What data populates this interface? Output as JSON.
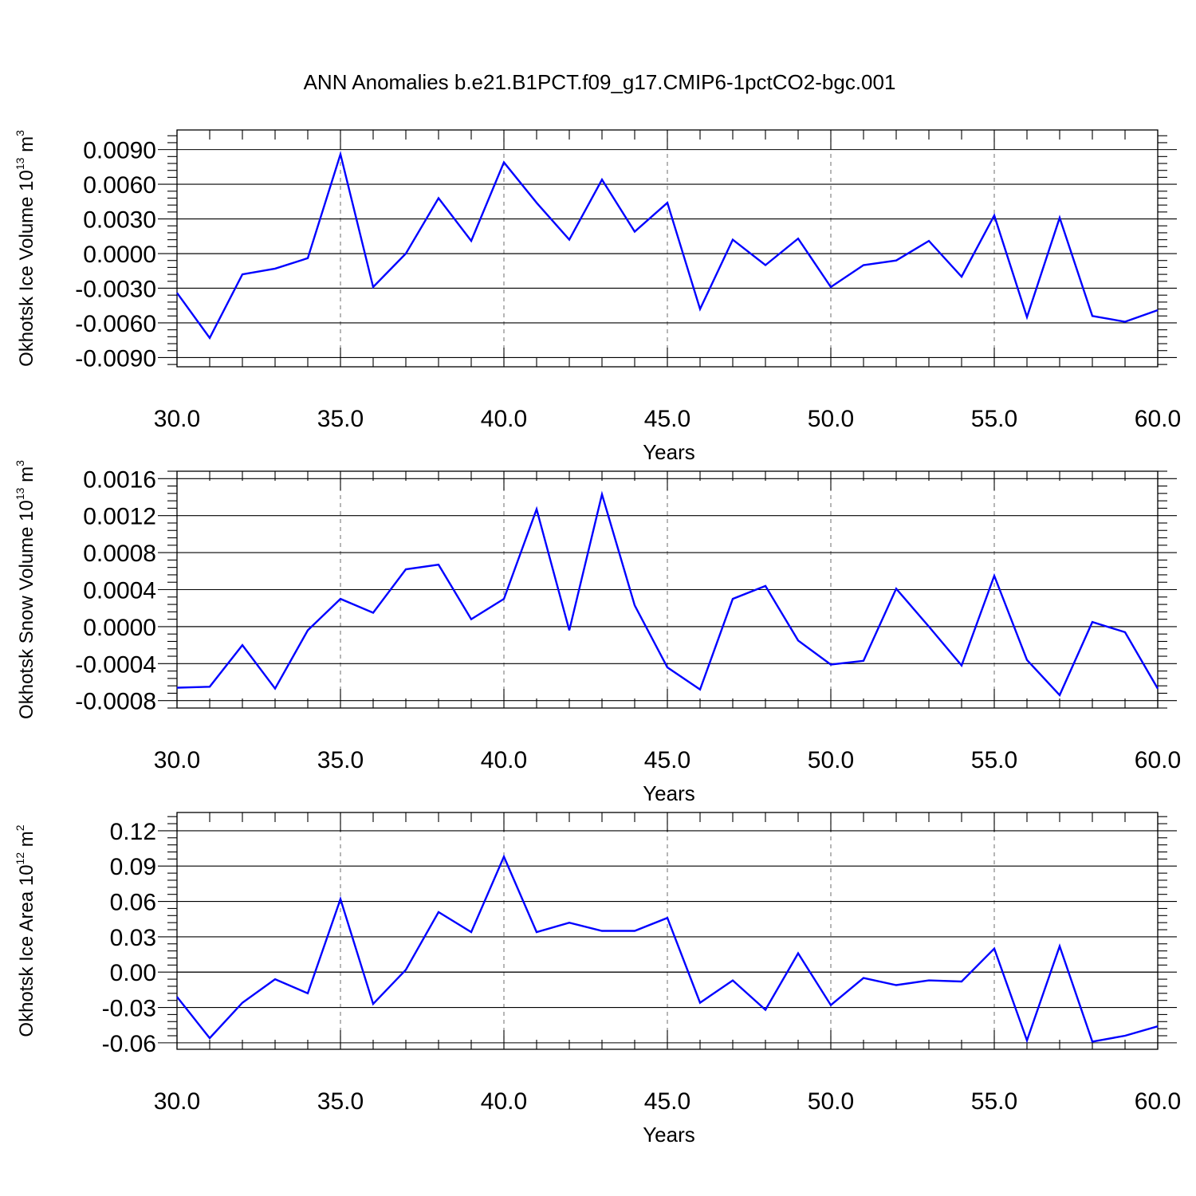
{
  "title": "ANN Anomalies b.e21.B1PCT.f09_g17.CMIP6-1pctCO2-bgc.001",
  "chart_data": [
    {
      "type": "line",
      "xlabel": "Years",
      "ylabel_main": "Okhotsk Ice Volume 10",
      "ylabel_exp": "13",
      "ylabel_unit": " m",
      "ylabel_unit_exp": "3",
      "xlim": [
        30,
        60
      ],
      "ylim": [
        -0.009,
        0.009
      ],
      "xticks": [
        30,
        35,
        40,
        45,
        50,
        55,
        60
      ],
      "xtick_labels": [
        "30.0",
        "35.0",
        "40.0",
        "45.0",
        "50.0",
        "55.0",
        "60.0"
      ],
      "yticks": [
        -0.009,
        -0.006,
        -0.003,
        0,
        0.003,
        0.006,
        0.009
      ],
      "ytick_labels": [
        "-0.0090",
        "-0.0060",
        "-0.0030",
        "0.0000",
        "0.0030",
        "0.0060",
        "0.0090"
      ],
      "ylim_display": [
        -0.0098,
        0.0107
      ],
      "minor_y_step": 0.0006,
      "x": [
        30,
        31,
        32,
        33,
        34,
        35,
        36,
        37,
        38,
        39,
        40,
        41,
        42,
        43,
        44,
        45,
        46,
        47,
        48,
        49,
        50,
        51,
        52,
        53,
        54,
        55,
        56,
        57,
        58,
        59,
        60
      ],
      "values": [
        -0.0034,
        -0.0073,
        -0.0018,
        -0.0013,
        -0.0004,
        0.0086,
        -0.0029,
        0.0,
        0.0048,
        0.0011,
        0.0079,
        0.0044,
        0.0012,
        0.0064,
        0.0019,
        0.0044,
        -0.0048,
        0.0012,
        -0.001,
        0.0013,
        -0.0029,
        -0.001,
        -0.0006,
        0.0011,
        -0.002,
        0.0033,
        -0.0055,
        0.0031,
        -0.0054,
        -0.0059,
        -0.0049
      ],
      "line_color": "#0000ff",
      "grid": "dashed vertical at 35, 40, 45, 50, 55"
    },
    {
      "type": "line",
      "xlabel": "Years",
      "ylabel_main": "Okhotsk Snow Volume 10",
      "ylabel_exp": "13",
      "ylabel_unit": " m",
      "ylabel_unit_exp": "3",
      "xlim": [
        30,
        60
      ],
      "ylim": [
        -0.0008,
        0.0016
      ],
      "xticks": [
        30,
        35,
        40,
        45,
        50,
        55,
        60
      ],
      "xtick_labels": [
        "30.0",
        "35.0",
        "40.0",
        "45.0",
        "50.0",
        "55.0",
        "60.0"
      ],
      "yticks": [
        -0.0008,
        -0.0004,
        0,
        0.0004,
        0.0008,
        0.0012,
        0.0016
      ],
      "ytick_labels": [
        "-0.0008",
        "-0.0004",
        "0.0000",
        "0.0004",
        "0.0008",
        "0.0012",
        "0.0016"
      ],
      "ylim_display": [
        -0.00088,
        0.00168
      ],
      "minor_y_step": 8e-05,
      "x": [
        30,
        31,
        32,
        33,
        34,
        35,
        36,
        37,
        38,
        39,
        40,
        41,
        42,
        43,
        44,
        45,
        46,
        47,
        48,
        49,
        50,
        51,
        52,
        53,
        54,
        55,
        56,
        57,
        58,
        59,
        60
      ],
      "values": [
        -0.00066,
        -0.00065,
        -0.0002,
        -0.00067,
        -4e-05,
        0.0003,
        0.00015,
        0.00062,
        0.00067,
        8e-05,
        0.0003,
        0.00127,
        -4e-05,
        0.00143,
        0.00023,
        -0.00044,
        -0.00068,
        0.0003,
        0.00044,
        -0.00015,
        -0.00041,
        -0.00037,
        0.00041,
        0.0,
        -0.00042,
        0.00055,
        -0.00036,
        -0.00074,
        5e-05,
        -6e-05,
        -0.00067
      ],
      "line_color": "#0000ff",
      "grid": "dashed vertical at 35, 40, 45, 50, 55"
    },
    {
      "type": "line",
      "xlabel": "Years",
      "ylabel_main": "Okhotsk Ice Area 10",
      "ylabel_exp": "12",
      "ylabel_unit": " m",
      "ylabel_unit_exp": "2",
      "xlim": [
        30,
        60
      ],
      "ylim": [
        -0.06,
        0.12
      ],
      "xticks": [
        30,
        35,
        40,
        45,
        50,
        55,
        60
      ],
      "xtick_labels": [
        "30.0",
        "35.0",
        "40.0",
        "45.0",
        "50.0",
        "55.0",
        "60.0"
      ],
      "yticks": [
        -0.06,
        -0.03,
        0,
        0.03,
        0.06,
        0.09,
        0.12
      ],
      "ytick_labels": [
        "-0.06",
        "-0.03",
        "0.00",
        "0.03",
        "0.06",
        "0.09",
        "0.12"
      ],
      "ylim_display": [
        -0.0655,
        0.1355
      ],
      "minor_y_step": 0.006,
      "x": [
        30,
        31,
        32,
        33,
        34,
        35,
        36,
        37,
        38,
        39,
        40,
        41,
        42,
        43,
        44,
        45,
        46,
        47,
        48,
        49,
        50,
        51,
        52,
        53,
        54,
        55,
        56,
        57,
        58,
        59,
        60
      ],
      "values": [
        -0.021,
        -0.056,
        -0.026,
        -0.006,
        -0.018,
        0.062,
        -0.027,
        0.002,
        0.051,
        0.034,
        0.098,
        0.034,
        0.042,
        0.035,
        0.035,
        0.046,
        -0.026,
        -0.007,
        -0.032,
        0.016,
        -0.028,
        -0.005,
        -0.011,
        -0.007,
        -0.008,
        0.02,
        -0.058,
        0.022,
        -0.059,
        -0.054,
        -0.046
      ],
      "line_color": "#0000ff",
      "grid": "dashed vertical at 35, 40, 45, 50, 55"
    }
  ]
}
